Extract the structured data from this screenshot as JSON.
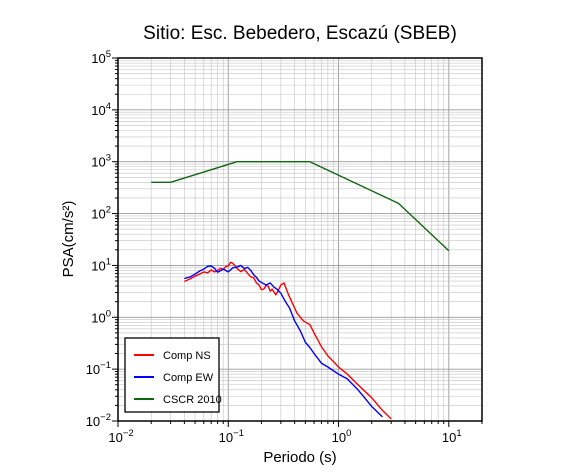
{
  "chart_data": {
    "type": "line",
    "title": "Sitio: Esc. Bebedero, Escazú (SBEB)",
    "xlabel": "Periodo (s)",
    "ylabel": "PSA(cm/s²)",
    "xscale": "log",
    "yscale": "log",
    "xlim": [
      0.01,
      20
    ],
    "ylim": [
      0.01,
      100000
    ],
    "grid": true,
    "legend_position": "bottom-left",
    "x_tick_labels": [
      {
        "value": 0.01,
        "base": "10",
        "exp": "−2"
      },
      {
        "value": 0.1,
        "base": "10",
        "exp": "−1"
      },
      {
        "value": 1,
        "base": "10",
        "exp": "0"
      },
      {
        "value": 10,
        "base": "10",
        "exp": "1"
      }
    ],
    "y_tick_labels": [
      {
        "value": 0.01,
        "base": "10",
        "exp": "−2"
      },
      {
        "value": 0.1,
        "base": "10",
        "exp": "−1"
      },
      {
        "value": 1,
        "base": "10",
        "exp": "0"
      },
      {
        "value": 10,
        "base": "10",
        "exp": "1"
      },
      {
        "value": 100,
        "base": "10",
        "exp": "2"
      },
      {
        "value": 1000,
        "base": "10",
        "exp": "3"
      },
      {
        "value": 10000,
        "base": "10",
        "exp": "4"
      },
      {
        "value": 100000,
        "base": "10",
        "exp": "5"
      }
    ],
    "series": [
      {
        "name": "Comp NS",
        "color": "#ff0000",
        "x": [
          0.04,
          0.045,
          0.05,
          0.055,
          0.06,
          0.065,
          0.07,
          0.075,
          0.08,
          0.085,
          0.09,
          0.095,
          0.1,
          0.105,
          0.11,
          0.115,
          0.12,
          0.13,
          0.14,
          0.15,
          0.16,
          0.17,
          0.18,
          0.19,
          0.2,
          0.21,
          0.22,
          0.23,
          0.24,
          0.25,
          0.27,
          0.29,
          0.3,
          0.32,
          0.35,
          0.38,
          0.42,
          0.48,
          0.55,
          0.6,
          0.7,
          0.8,
          0.9,
          1.0,
          1.2,
          1.5,
          2.0,
          2.5,
          3.0
        ],
        "y": [
          4.9,
          5.5,
          6.2,
          6.8,
          7.5,
          7.2,
          8.2,
          7.5,
          8.0,
          8.8,
          8.4,
          9.5,
          9.7,
          11.5,
          11.0,
          9.8,
          8.7,
          7.6,
          8.4,
          7.0,
          6.0,
          5.8,
          4.6,
          4.2,
          3.4,
          3.5,
          4.1,
          4.0,
          3.2,
          3.5,
          2.7,
          3.6,
          4.2,
          4.6,
          2.8,
          1.9,
          1.2,
          0.85,
          0.72,
          0.5,
          0.27,
          0.18,
          0.14,
          0.11,
          0.08,
          0.05,
          0.028,
          0.016,
          0.011
        ]
      },
      {
        "name": "Comp EW",
        "color": "#0000ff",
        "x": [
          0.04,
          0.045,
          0.05,
          0.055,
          0.06,
          0.065,
          0.07,
          0.075,
          0.08,
          0.085,
          0.09,
          0.1,
          0.11,
          0.12,
          0.13,
          0.14,
          0.15,
          0.16,
          0.17,
          0.18,
          0.19,
          0.2,
          0.22,
          0.24,
          0.26,
          0.28,
          0.3,
          0.33,
          0.36,
          0.4,
          0.45,
          0.5,
          0.55,
          0.6,
          0.7,
          0.8,
          1.0,
          1.2,
          1.5,
          1.8,
          2.0,
          2.5
        ],
        "y": [
          5.6,
          6.0,
          6.8,
          7.8,
          8.5,
          9.6,
          9.8,
          8.8,
          7.4,
          7.9,
          8.5,
          7.5,
          9.0,
          9.3,
          10.0,
          8.7,
          9.2,
          8.0,
          6.6,
          5.9,
          5.0,
          4.7,
          4.2,
          4.6,
          3.8,
          3.4,
          2.9,
          2.0,
          1.5,
          0.85,
          0.55,
          0.33,
          0.26,
          0.2,
          0.13,
          0.11,
          0.08,
          0.065,
          0.04,
          0.025,
          0.019,
          0.012
        ]
      },
      {
        "name": "CSCR 2010",
        "color": "#116611",
        "x": [
          0.02,
          0.03,
          0.12,
          0.55,
          3.5,
          10.0
        ],
        "y": [
          400,
          400,
          1000,
          1000,
          157,
          19.2
        ]
      }
    ]
  }
}
